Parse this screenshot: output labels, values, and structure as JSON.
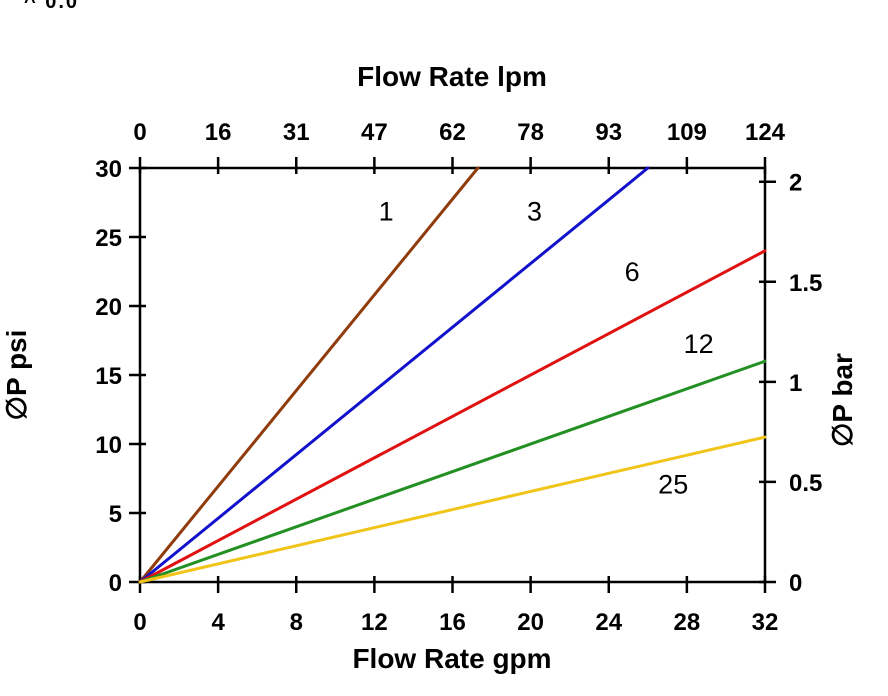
{
  "page": {
    "corner_fragment": "^ 0.0"
  },
  "chart_data": {
    "type": "line",
    "title": "",
    "grid": false,
    "legend": "inline-labels",
    "top_axis": {
      "title": "Flow Rate lpm",
      "tick_labels": [
        "0",
        "16",
        "31",
        "47",
        "62",
        "78",
        "93",
        "109",
        "124"
      ]
    },
    "bottom_axis": {
      "title": "Flow Rate gpm",
      "ticks": [
        0,
        4,
        8,
        12,
        16,
        20,
        24,
        28,
        32
      ],
      "range": [
        0,
        32
      ]
    },
    "left_axis": {
      "title": "∅P psi",
      "ticks": [
        0,
        5,
        10,
        15,
        20,
        25,
        30
      ],
      "range": [
        0,
        30
      ]
    },
    "right_axis": {
      "title": "∅P bar",
      "tick_labels": [
        "0",
        "0.5",
        "1",
        "1.5",
        "2"
      ],
      "psi_per_bar": 14.5038,
      "range_bar": [
        0,
        2
      ]
    },
    "series": [
      {
        "label": "1",
        "color": "#8f3b0b",
        "points": [
          [
            0,
            0
          ],
          [
            17.3,
            30
          ]
        ],
        "label_pos": [
          12.6,
          26.2
        ]
      },
      {
        "label": "3",
        "color": "#1212cc",
        "points": [
          [
            0,
            0
          ],
          [
            26.0,
            30
          ]
        ],
        "label_pos": [
          20.2,
          26.2
        ]
      },
      {
        "label": "6",
        "color": "#e01111",
        "points": [
          [
            0,
            0
          ],
          [
            32,
            24
          ]
        ],
        "label_pos": [
          25.2,
          21.8
        ]
      },
      {
        "label": "12",
        "color": "#239023",
        "points": [
          [
            0,
            0
          ],
          [
            32,
            16
          ]
        ],
        "label_pos": [
          28.6,
          16.6
        ]
      },
      {
        "label": "25",
        "color": "#f0c419",
        "points": [
          [
            0,
            0
          ],
          [
            32,
            10.5
          ]
        ],
        "label_pos": [
          27.3,
          6.4
        ]
      }
    ],
    "axis_color": "#000000"
  }
}
